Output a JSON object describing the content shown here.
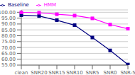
{
  "chart_data": {
    "type": "line",
    "categories": [
      "clean",
      "SNR20",
      "SNR15",
      "SNR10",
      "SNR5",
      "SNR0",
      "SNR-5"
    ],
    "series": [
      {
        "name": "Baseline",
        "color": "#000080",
        "marker": "square",
        "values": [
          97.5,
          96.8,
          93.2,
          89.0,
          78.5,
          67.5,
          55.5
        ]
      },
      {
        "name": "HMM",
        "color": "#FF00FF",
        "marker": "square",
        "values": [
          99.9,
          99.6,
          98.3,
          97.2,
          94.8,
          89.5,
          86.0
        ]
      }
    ],
    "ylim": [
      55,
      102
    ],
    "yticks": [
      {
        "value": 55,
        "label": "55.00"
      },
      {
        "value": 60,
        "label": "60.00"
      },
      {
        "value": 65,
        "label": "65.00"
      },
      {
        "value": 70,
        "label": "70.00"
      },
      {
        "value": 75,
        "label": "75.00"
      },
      {
        "value": 80,
        "label": "80.00"
      },
      {
        "value": 85,
        "label": "85.00"
      },
      {
        "value": 90,
        "label": "90.00"
      },
      {
        "value": 95,
        "label": "95.00"
      },
      {
        "value": 100,
        "label": "100.00"
      }
    ],
    "grid": true,
    "legend": "upper left"
  }
}
